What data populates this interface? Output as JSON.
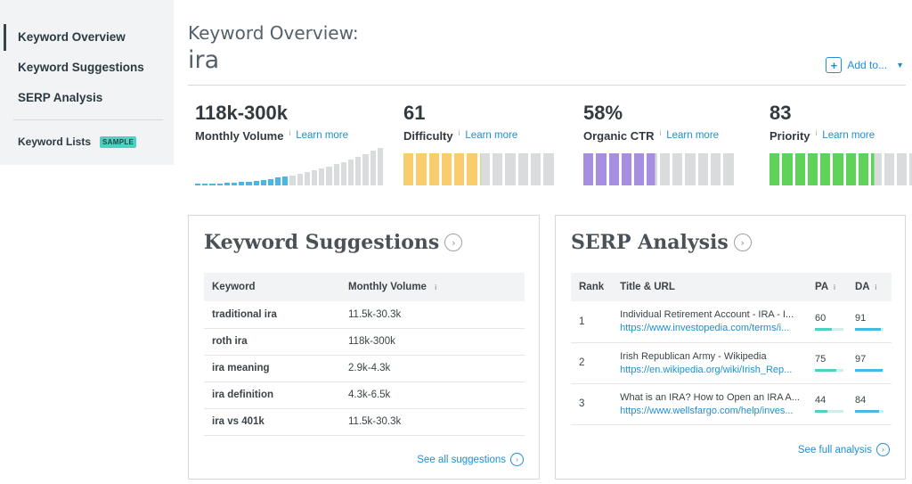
{
  "sidebar": {
    "items": [
      {
        "label": "Keyword Overview",
        "active": true
      },
      {
        "label": "Keyword Suggestions",
        "active": false
      },
      {
        "label": "SERP Analysis",
        "active": false
      }
    ],
    "lists_label": "Keyword Lists",
    "lists_badge": "SAMPLE"
  },
  "header": {
    "title": "Keyword Overview:",
    "keyword": "ira",
    "add_to_label": "Add to...",
    "add_icon": "plus-icon",
    "caret_icon": "caret-down-icon"
  },
  "metrics": [
    {
      "value": "118k-300k",
      "label": "Monthly Volume",
      "learn": "Learn more",
      "info": "i"
    },
    {
      "value": "61",
      "label": "Difficulty",
      "learn": "Learn more",
      "info": "i",
      "score": 61,
      "color": "#f9cd6c"
    },
    {
      "value": "58%",
      "label": "Organic CTR",
      "learn": "Learn more",
      "info": "i",
      "score": 58,
      "color": "#a88ee0"
    },
    {
      "value": "83",
      "label": "Priority",
      "learn": "Learn more",
      "info": "i",
      "score": 83,
      "color": "#5fd25a"
    }
  ],
  "volume_bars": {
    "filled_color": "#48b6e6",
    "empty_color": "#d9dcdd",
    "filled_count": 13
  },
  "suggestions": {
    "title": "Keyword Suggestions",
    "columns": [
      "Keyword",
      "Monthly Volume"
    ],
    "volume_info": "i",
    "rows": [
      {
        "keyword": "traditional ira",
        "volume": "11.5k-30.3k"
      },
      {
        "keyword": "roth ira",
        "volume": "118k-300k"
      },
      {
        "keyword": "ira meaning",
        "volume": "2.9k-4.3k"
      },
      {
        "keyword": "ira definition",
        "volume": "4.3k-6.5k"
      },
      {
        "keyword": "ira vs 401k",
        "volume": "11.5k-30.3k"
      }
    ],
    "see_all": "See all suggestions"
  },
  "serp": {
    "title": "SERP Analysis",
    "columns": [
      "Rank",
      "Title & URL",
      "PA",
      "DA"
    ],
    "pa_info": "i",
    "da_info": "i",
    "rows": [
      {
        "rank": "1",
        "title": "Individual Retirement Account - IRA - I...",
        "url": "https://www.investopedia.com/terms/i...",
        "pa": "60",
        "da": "91",
        "pa_fill": 0.6,
        "da_fill": 0.91
      },
      {
        "rank": "2",
        "title": "Irish Republican Army - Wikipedia",
        "url": "https://en.wikipedia.org/wiki/Irish_Rep...",
        "pa": "75",
        "da": "97",
        "pa_fill": 0.75,
        "da_fill": 0.97
      },
      {
        "rank": "3",
        "title": "What is an IRA? How to Open an IRA A...",
        "url": "https://www.wellsfargo.com/help/inves...",
        "pa": "44",
        "da": "84",
        "pa_fill": 0.44,
        "da_fill": 0.84
      }
    ],
    "see_all": "See full analysis",
    "pa_color": "#4fd0c0",
    "da_color": "#48b6e6"
  }
}
